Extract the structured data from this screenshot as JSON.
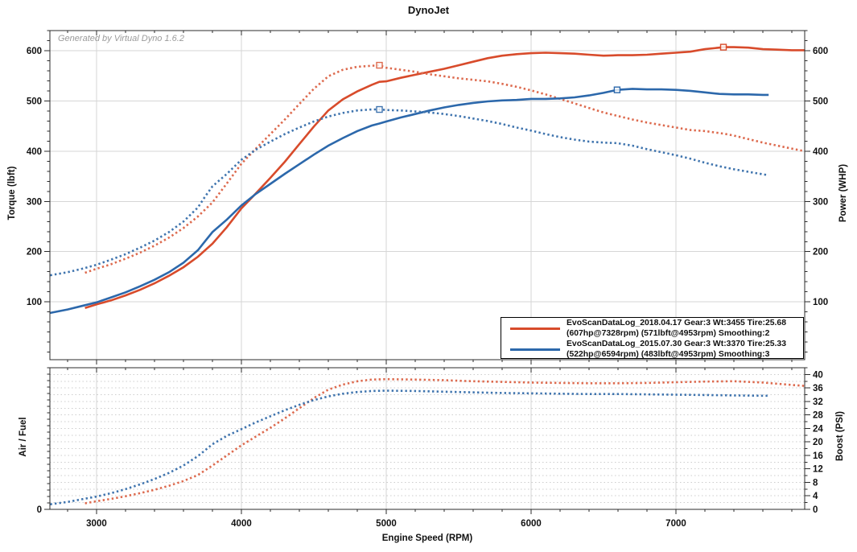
{
  "title": "DynoJet",
  "watermark": "Generated by Virtual Dyno 1.6.2",
  "colors": {
    "run2018_solid": "#d84b2b",
    "run2018_dotted": "#dd6a4e",
    "run2015_solid": "#2c68ab",
    "run2015_dotted": "#3f74ae",
    "grid": "#d6d6d6",
    "grid_dotted": "#cdcdcd",
    "axis": "#2b2b2b"
  },
  "legend": {
    "entries": [
      {
        "color": "#d84b2b",
        "line1": "EvoScanDataLog_2018.04.17 Gear:3 Wt:3455 Tire:25.68",
        "line2": "(607hp@7328rpm) (571lbft@4953rpm) Smoothing:2"
      },
      {
        "color": "#2c68ab",
        "line1": "EvoScanDataLog_2015.07.30 Gear:3 Wt:3370 Tire:25.33",
        "line2": "(522hp@6594rpm) (483lbft@4953rpm) Smoothing:3"
      }
    ]
  },
  "chart_data": [
    {
      "type": "line",
      "panel": "torque-power",
      "x_axis": {
        "label": "Engine Speed (RPM)",
        "min": 2678,
        "max": 7889,
        "major_ticks": [
          3000,
          4000,
          5000,
          6000,
          7000
        ],
        "minor_step": 200
      },
      "y_left": {
        "label": "Torque (lbft)",
        "min": -15,
        "max": 640,
        "major_ticks": [
          100,
          200,
          300,
          400,
          500,
          600
        ],
        "minor_step": 20
      },
      "y_right": {
        "label": "Power (WHP)",
        "min": -15,
        "max": 640,
        "major_ticks": [
          100,
          200,
          300,
          400,
          500,
          600
        ],
        "minor_step": 20
      },
      "grid": {
        "vertical": "solid",
        "horizontal": "solid"
      },
      "series": [
        {
          "name": "2018 Power (WHP)",
          "style": "solid",
          "axis": "right",
          "color": "#d84b2b",
          "x": [
            2920,
            3000,
            3100,
            3200,
            3300,
            3400,
            3500,
            3600,
            3700,
            3800,
            3900,
            4000,
            4100,
            4200,
            4300,
            4400,
            4500,
            4600,
            4700,
            4800,
            4900,
            4953,
            5000,
            5100,
            5200,
            5300,
            5400,
            5500,
            5600,
            5700,
            5800,
            5900,
            6000,
            6100,
            6200,
            6300,
            6400,
            6500,
            6600,
            6700,
            6800,
            6900,
            7000,
            7100,
            7200,
            7300,
            7328,
            7400,
            7500,
            7600,
            7700,
            7800,
            7890
          ],
          "y": [
            88,
            95,
            103,
            113,
            124,
            137,
            152,
            169,
            190,
            216,
            249,
            286,
            316,
            347,
            379,
            414,
            449,
            481,
            503,
            519,
            532,
            538,
            539,
            546,
            552,
            558,
            564,
            571,
            578,
            585,
            590,
            593,
            595,
            596,
            595,
            594,
            592,
            590,
            591,
            591,
            592,
            594,
            596,
            598,
            603,
            606,
            607,
            607,
            606,
            603,
            602,
            601,
            601
          ],
          "peak_marker": {
            "x": 7328,
            "y": 607
          }
        },
        {
          "name": "2018 Torque (lbft)",
          "style": "dotted",
          "axis": "left",
          "color": "#dd6a4e",
          "x": [
            2920,
            3000,
            3100,
            3200,
            3300,
            3400,
            3500,
            3600,
            3700,
            3800,
            3900,
            4000,
            4100,
            4200,
            4300,
            4400,
            4500,
            4600,
            4700,
            4800,
            4900,
            4953,
            5000,
            5100,
            5200,
            5300,
            5400,
            5500,
            5600,
            5700,
            5800,
            5900,
            6000,
            6100,
            6200,
            6300,
            6400,
            6500,
            6600,
            6700,
            6800,
            6900,
            7000,
            7100,
            7200,
            7300,
            7328,
            7400,
            7500,
            7600,
            7700,
            7800,
            7890
          ],
          "y": [
            158,
            166,
            175,
            186,
            198,
            212,
            228,
            247,
            270,
            298,
            336,
            375,
            405,
            434,
            463,
            494,
            524,
            549,
            562,
            568,
            570,
            571,
            566,
            562,
            558,
            553,
            549,
            545,
            542,
            539,
            534,
            528,
            521,
            513,
            504,
            495,
            486,
            477,
            470,
            463,
            457,
            452,
            447,
            442,
            440,
            436,
            435,
            431,
            424,
            417,
            411,
            405,
            400
          ],
          "peak_marker": {
            "x": 4953,
            "y": 571
          }
        },
        {
          "name": "2015 Power (WHP)",
          "style": "solid",
          "axis": "right",
          "color": "#2c68ab",
          "x": [
            2680,
            2800,
            2900,
            3000,
            3100,
            3200,
            3300,
            3400,
            3500,
            3600,
            3700,
            3750,
            3800,
            3900,
            4000,
            4100,
            4200,
            4300,
            4400,
            4500,
            4600,
            4700,
            4800,
            4900,
            4953,
            5000,
            5100,
            5200,
            5300,
            5400,
            5500,
            5600,
            5700,
            5800,
            5900,
            6000,
            6100,
            6200,
            6300,
            6400,
            6500,
            6594,
            6700,
            6800,
            6900,
            7000,
            7100,
            7200,
            7300,
            7400,
            7500,
            7600,
            7640
          ],
          "y": [
            78,
            85,
            92,
            99,
            109,
            119,
            131,
            144,
            159,
            178,
            203,
            221,
            239,
            264,
            292,
            315,
            335,
            355,
            374,
            393,
            411,
            426,
            440,
            451,
            455,
            459,
            467,
            474,
            481,
            487,
            492,
            496,
            499,
            501,
            502,
            504,
            504,
            505,
            507,
            511,
            516,
            522,
            524,
            523,
            523,
            522,
            520,
            517,
            514,
            513,
            513,
            512,
            512
          ],
          "peak_marker": {
            "x": 6594,
            "y": 522
          }
        },
        {
          "name": "2015 Torque (lbft)",
          "style": "dotted",
          "axis": "left",
          "color": "#3f74ae",
          "x": [
            2680,
            2800,
            2900,
            3000,
            3100,
            3200,
            3300,
            3400,
            3500,
            3600,
            3700,
            3750,
            3800,
            3900,
            4000,
            4100,
            4200,
            4300,
            4400,
            4500,
            4600,
            4700,
            4800,
            4900,
            4953,
            5000,
            5100,
            5200,
            5300,
            5400,
            5500,
            5600,
            5700,
            5800,
            5900,
            6000,
            6100,
            6200,
            6300,
            6400,
            6500,
            6594,
            6700,
            6800,
            6900,
            7000,
            7100,
            7200,
            7300,
            7400,
            7500,
            7600,
            7640
          ],
          "y": [
            153,
            159,
            166,
            174,
            184,
            195,
            208,
            222,
            239,
            260,
            288,
            310,
            330,
            355,
            383,
            403,
            419,
            434,
            447,
            459,
            469,
            476,
            481,
            483,
            483,
            482,
            481,
            479,
            477,
            474,
            470,
            465,
            460,
            454,
            447,
            441,
            434,
            428,
            423,
            419,
            417,
            416,
            411,
            404,
            398,
            392,
            385,
            377,
            370,
            364,
            359,
            354,
            352
          ],
          "peak_marker": {
            "x": 4953,
            "y": 483
          }
        }
      ]
    },
    {
      "type": "line",
      "panel": "airfuel-boost",
      "x_axis": {
        "label": "Engine Speed (RPM)",
        "min": 2678,
        "max": 7889,
        "major_ticks": [
          3000,
          4000,
          5000,
          6000,
          7000
        ],
        "minor_step": 200
      },
      "y_left": {
        "label": "Air / Fuel",
        "min": 0,
        "max": 22,
        "labeled_ticks": [
          0
        ],
        "minor_step": 1
      },
      "y_right": {
        "label": "Boost (PSI)",
        "min": 0,
        "max": 42,
        "major_ticks": [
          0,
          4,
          8,
          12,
          16,
          20,
          24,
          28,
          32,
          36,
          40
        ],
        "minor_step": 2
      },
      "grid": {
        "vertical": "solid",
        "horizontal": "dotted",
        "horizontal_step": 2
      },
      "series": [
        {
          "name": "2018 Boost (PSI)",
          "style": "dotted",
          "axis": "right",
          "color": "#dd6a4e",
          "x": [
            2920,
            3000,
            3100,
            3200,
            3300,
            3400,
            3500,
            3600,
            3700,
            3800,
            3900,
            4000,
            4100,
            4200,
            4300,
            4400,
            4500,
            4600,
            4700,
            4800,
            4900,
            5000,
            5200,
            5400,
            5600,
            5800,
            6000,
            6200,
            6400,
            6600,
            6800,
            7000,
            7200,
            7400,
            7600,
            7800,
            7890
          ],
          "y": [
            1.8,
            2.4,
            3.1,
            3.9,
            4.8,
            5.8,
            7.0,
            8.4,
            10.2,
            13.0,
            16.0,
            19.0,
            21.6,
            24.2,
            27.0,
            30.0,
            33.0,
            35.5,
            37.0,
            38.0,
            38.5,
            38.6,
            38.5,
            38.3,
            38.0,
            37.8,
            37.6,
            37.5,
            37.4,
            37.4,
            37.5,
            37.7,
            37.9,
            38.0,
            37.6,
            36.9,
            36.6
          ]
        },
        {
          "name": "2015 Boost (PSI)",
          "style": "dotted",
          "axis": "right",
          "color": "#3f74ae",
          "x": [
            2680,
            2800,
            2900,
            3000,
            3100,
            3200,
            3300,
            3400,
            3500,
            3600,
            3700,
            3800,
            3900,
            4000,
            4100,
            4200,
            4300,
            4400,
            4500,
            4600,
            4700,
            4800,
            4900,
            5000,
            5200,
            5400,
            5600,
            5800,
            6000,
            6200,
            6400,
            6600,
            6800,
            7000,
            7200,
            7400,
            7600,
            7640
          ],
          "y": [
            1.5,
            2.2,
            3.0,
            3.8,
            4.8,
            6.0,
            7.4,
            9.0,
            10.8,
            13.0,
            15.8,
            19.3,
            21.8,
            23.8,
            25.8,
            27.6,
            29.4,
            31.0,
            32.4,
            33.5,
            34.3,
            34.8,
            35.1,
            35.2,
            35.1,
            34.9,
            34.7,
            34.5,
            34.4,
            34.3,
            34.2,
            34.2,
            34.1,
            34.0,
            33.9,
            33.8,
            33.7,
            33.7
          ]
        }
      ]
    }
  ]
}
